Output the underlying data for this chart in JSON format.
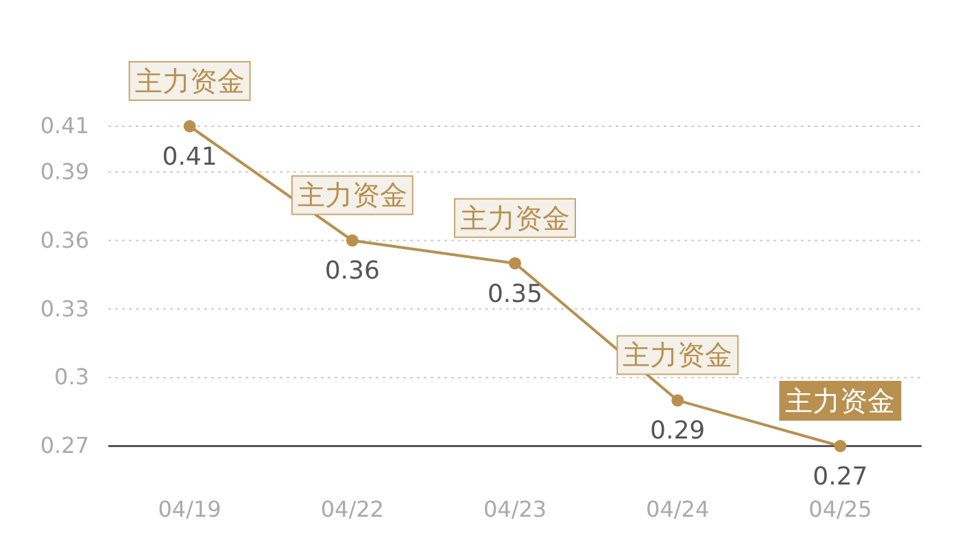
{
  "chart_data": {
    "type": "line",
    "categories": [
      "04/19",
      "04/22",
      "04/23",
      "04/24",
      "04/25"
    ],
    "values": [
      0.41,
      0.36,
      0.35,
      0.29,
      0.27
    ],
    "color": "#b8904f",
    "ylim": [
      0.27,
      0.41
    ],
    "yticks": [
      0.27,
      0.3,
      0.33,
      0.36,
      0.39,
      0.41
    ],
    "grid": "y",
    "marker": "circle",
    "data_labels": true,
    "annotations": [
      {
        "text": "主力资金",
        "x": "04/19",
        "y": 0.41
      },
      {
        "text": "主力资金",
        "x": "04/22",
        "y": 0.36
      },
      {
        "text": "主力资金",
        "x": "04/23",
        "y": 0.35
      },
      {
        "text": "主力资金",
        "x": "04/24",
        "y": 0.29
      },
      {
        "text": "主力资金",
        "x": "04/25",
        "y": 0.27
      }
    ]
  }
}
